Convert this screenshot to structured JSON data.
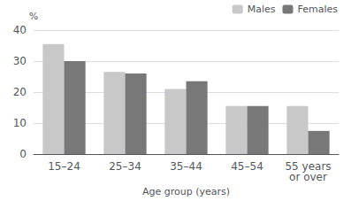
{
  "chart_data": {
    "type": "bar",
    "categories": [
      "15–24",
      "25–34",
      "35–44",
      "45–54",
      "55 years\nor over"
    ],
    "series": [
      {
        "name": "Males",
        "color": "#c8c8c8",
        "values": [
          35.5,
          26.5,
          21.0,
          15.5,
          15.5
        ]
      },
      {
        "name": "Females",
        "color": "#787878",
        "values": [
          30.0,
          26.0,
          23.5,
          15.5,
          7.5
        ]
      }
    ],
    "xlabel": "Age group (years)",
    "ylabel": "%",
    "ylim": [
      0,
      40
    ],
    "yticks": [
      0,
      10,
      20,
      30,
      40
    ],
    "grid": true,
    "legend": "upper right"
  }
}
